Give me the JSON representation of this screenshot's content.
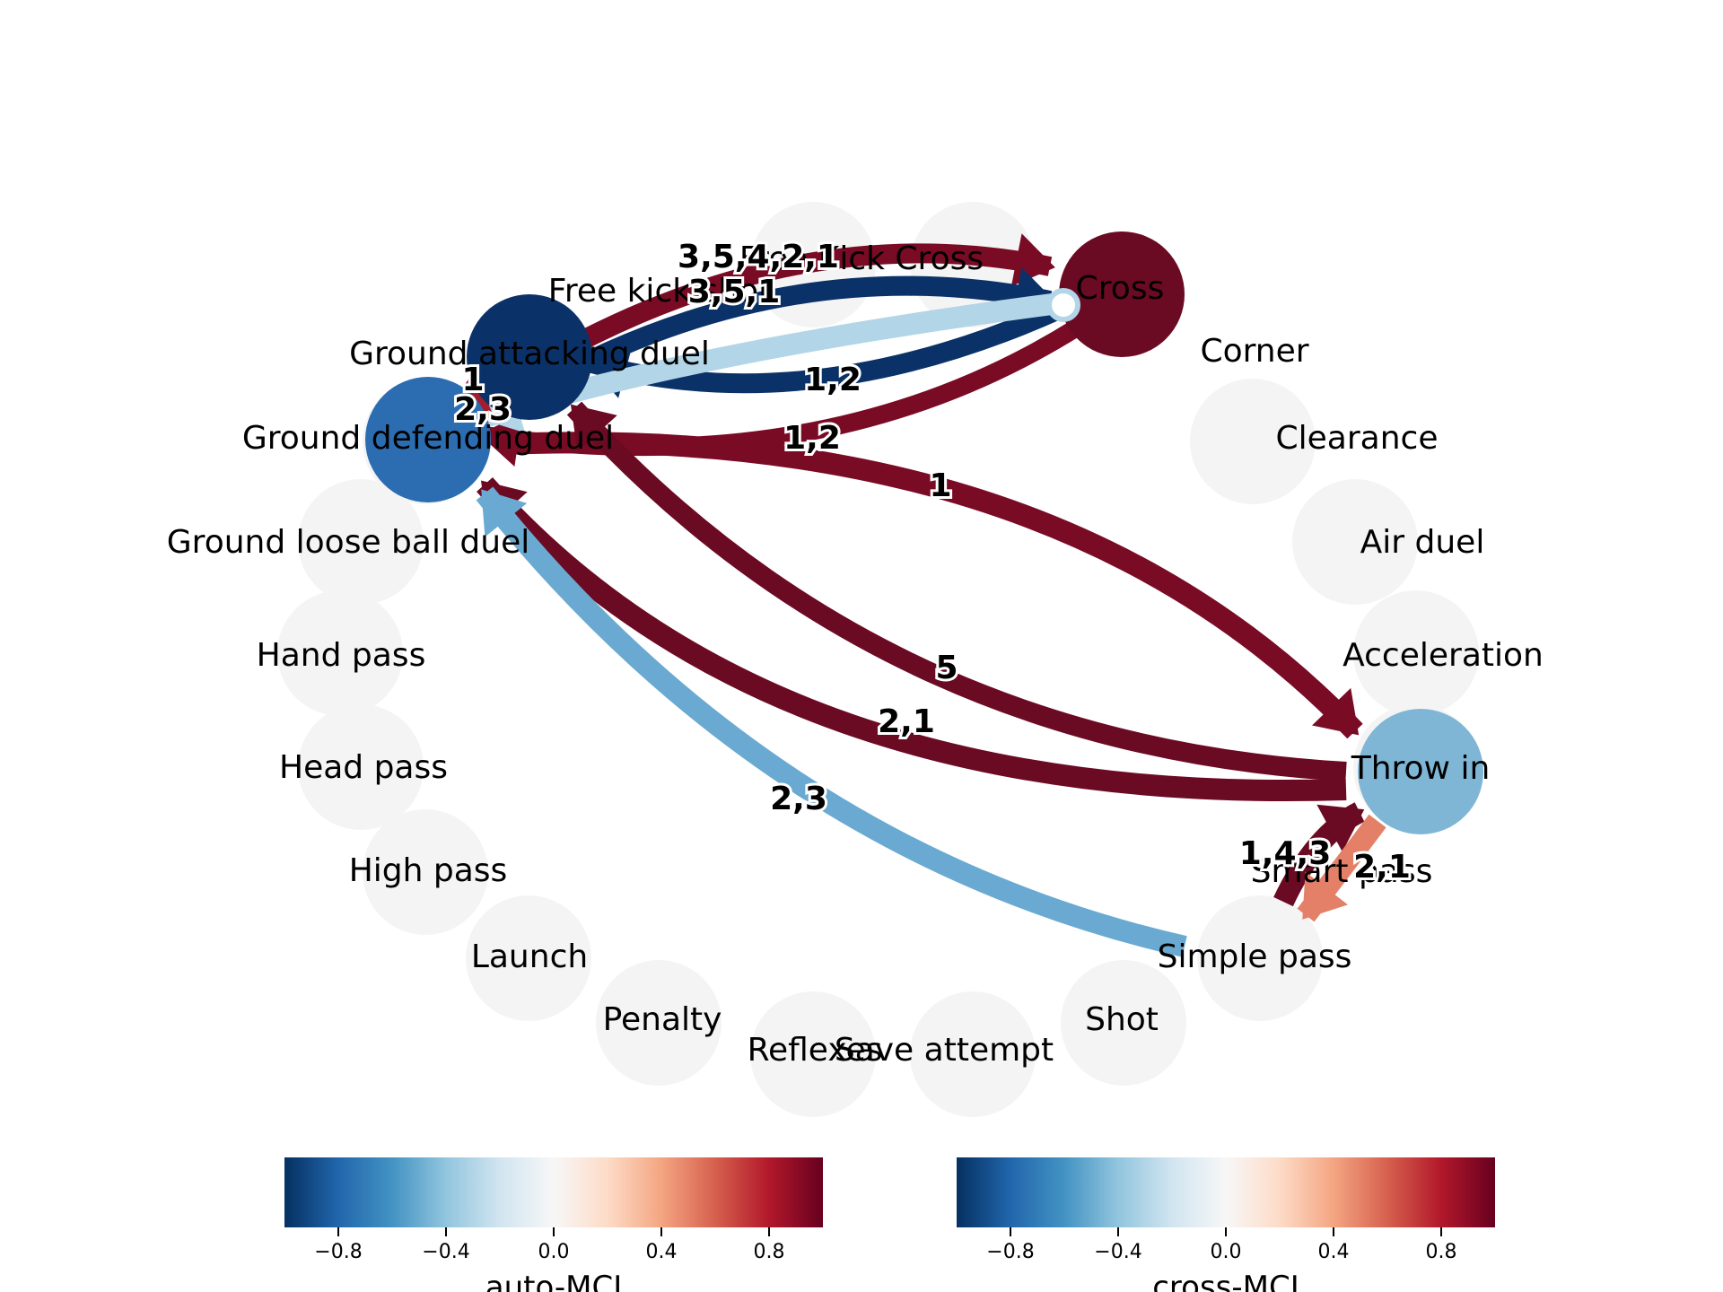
{
  "nodes": [
    {
      "id": "free-kick-cross",
      "label": "Free Kick Cross",
      "active": false,
      "color": null
    },
    {
      "id": "free-kick-shot",
      "label": "Free kick shot",
      "active": false,
      "color": null
    },
    {
      "id": "ground-attacking-duel",
      "label": "Ground attacking duel",
      "active": true,
      "color": "#0b3268"
    },
    {
      "id": "ground-defending-duel",
      "label": "Ground defending duel",
      "active": true,
      "color": "#2c6db2"
    },
    {
      "id": "ground-loose-ball-duel",
      "label": "Ground loose ball duel",
      "active": false,
      "color": null
    },
    {
      "id": "hand-pass",
      "label": "Hand pass",
      "active": false,
      "color": null
    },
    {
      "id": "head-pass",
      "label": "Head pass",
      "active": false,
      "color": null
    },
    {
      "id": "high-pass",
      "label": "High pass",
      "active": false,
      "color": null
    },
    {
      "id": "launch",
      "label": "Launch",
      "active": false,
      "color": null
    },
    {
      "id": "penalty",
      "label": "Penalty",
      "active": false,
      "color": null
    },
    {
      "id": "reflexes",
      "label": "Reflexes",
      "active": false,
      "color": null
    },
    {
      "id": "save-attempt",
      "label": "Save attempt",
      "active": false,
      "color": null
    },
    {
      "id": "shot",
      "label": "Shot",
      "active": false,
      "color": null
    },
    {
      "id": "simple-pass",
      "label": "Simple pass",
      "active": false,
      "color": null
    },
    {
      "id": "smart-pass",
      "label": "Smart pass",
      "active": false,
      "color": null
    },
    {
      "id": "throw-in",
      "label": "Throw in",
      "active": true,
      "color": "#7fb6d6"
    },
    {
      "id": "acceleration",
      "label": "Acceleration",
      "active": false,
      "color": null
    },
    {
      "id": "air-duel",
      "label": "Air duel",
      "active": false,
      "color": null
    },
    {
      "id": "clearance",
      "label": "Clearance",
      "active": false,
      "color": null
    },
    {
      "id": "corner",
      "label": "Corner",
      "active": false,
      "color": null
    },
    {
      "id": "cross",
      "label": "Cross",
      "active": true,
      "color": "#6b0a23"
    }
  ],
  "edges": [
    {
      "from": "ground-defending-duel",
      "to": "cross",
      "label": "3,5,4,2,1",
      "color": "#7a0b25"
    },
    {
      "from": "ground-attacking-duel",
      "to": "cross",
      "label": "3,5,1",
      "color": "#0b3268"
    },
    {
      "from": "cross",
      "to": "ground-defending-duel",
      "label": "1,2",
      "color": "#7a0b25"
    },
    {
      "from": "cross",
      "to": "ground-attacking-duel",
      "label": "1,2",
      "color": "#0b3268"
    },
    {
      "from": "cross",
      "to": "ground-defending-duel",
      "label": "2,3",
      "color": "#b2d5e8"
    },
    {
      "from": "ground-defending-duel",
      "to": "throw-in",
      "label": "1",
      "color": "#7a0b25"
    },
    {
      "from": "throw-in",
      "to": "ground-attacking-duel",
      "label": "5",
      "color": "#6b0a23"
    },
    {
      "from": "throw-in",
      "to": "ground-defending-duel",
      "label": "2,1",
      "color": "#6b0a23"
    },
    {
      "from": "simple-pass",
      "to": "ground-defending-duel",
      "label": "2,3",
      "color": "#6aaad2"
    },
    {
      "from": "smart-pass",
      "to": "throw-in",
      "label": "1,4,3",
      "color": "#6b0a23"
    },
    {
      "from": "throw-in",
      "to": "smart-pass",
      "label": "2,1",
      "color": "#e38067"
    },
    {
      "from": "ground-attacking-duel",
      "to": "ground-defending-duel",
      "label": "1",
      "color": "#a51c2e"
    }
  ],
  "colorbars": [
    {
      "title": "auto-MCI",
      "ticks": [
        "−0.8",
        "−0.4",
        "0.0",
        "0.4",
        "0.8"
      ],
      "tick_values": [
        -0.8,
        -0.4,
        0.0,
        0.4,
        0.8
      ],
      "range": [
        -1,
        1
      ]
    },
    {
      "title": "cross-MCI",
      "ticks": [
        "−0.8",
        "−0.4",
        "0.0",
        "0.4",
        "0.8"
      ],
      "tick_values": [
        -0.8,
        -0.4,
        0.0,
        0.4,
        0.8
      ],
      "range": [
        -1,
        1
      ]
    }
  ],
  "colormap": [
    "#053061",
    "#2166ac",
    "#4393c3",
    "#92c5de",
    "#d1e5f0",
    "#f7f7f7",
    "#fddbc7",
    "#f4a582",
    "#d6604d",
    "#b2182b",
    "#67001f"
  ],
  "inactive_node_color": "#f4f4f4"
}
